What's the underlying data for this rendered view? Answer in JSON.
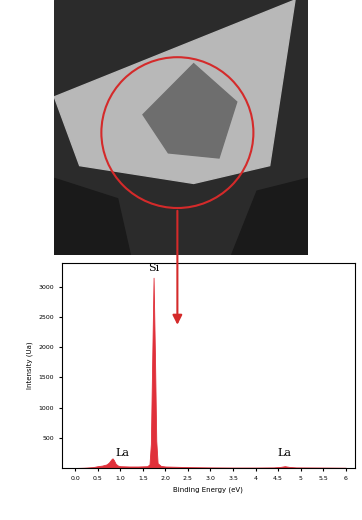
{
  "chart_data": {
    "type": "area",
    "x_label": "Binding Energy (eV)",
    "y_label": "Intensity (Ua)",
    "x": [
      0.0,
      0.2,
      0.4,
      0.5,
      0.6,
      0.7,
      0.75,
      0.8,
      0.83,
      0.86,
      0.9,
      0.95,
      1.0,
      1.2,
      1.4,
      1.6,
      1.65,
      1.68,
      1.71,
      1.74,
      1.77,
      1.8,
      1.83,
      1.9,
      2.0,
      2.5,
      3.0,
      3.5,
      4.0,
      4.4,
      4.55,
      4.65,
      4.75,
      4.9,
      5.5,
      6.0
    ],
    "series": [
      {
        "color": "#e0303a",
        "values": [
          0,
          5,
          15,
          30,
          40,
          60,
          90,
          140,
          160,
          130,
          70,
          40,
          30,
          25,
          25,
          30,
          60,
          400,
          1800,
          3150,
          1900,
          450,
          80,
          35,
          25,
          15,
          10,
          8,
          8,
          10,
          18,
          30,
          18,
          10,
          8,
          5
        ]
      }
    ],
    "annotations": [
      {
        "text": "Si",
        "x": 1.74,
        "y": 3230
      },
      {
        "text": "La",
        "x": 1.05,
        "y": 170
      },
      {
        "text": "La",
        "x": 4.65,
        "y": 170
      }
    ],
    "xlim": [
      -0.3,
      6.2
    ],
    "xticks": [
      0.0,
      0.5,
      1.0,
      1.5,
      2.0,
      2.5,
      3.0,
      3.5,
      4,
      4.5,
      5,
      5.5,
      6
    ],
    "ylim": [
      0,
      3400
    ],
    "yticks": [
      500,
      1000,
      1500,
      2000,
      2500,
      3000
    ],
    "grid": false
  }
}
